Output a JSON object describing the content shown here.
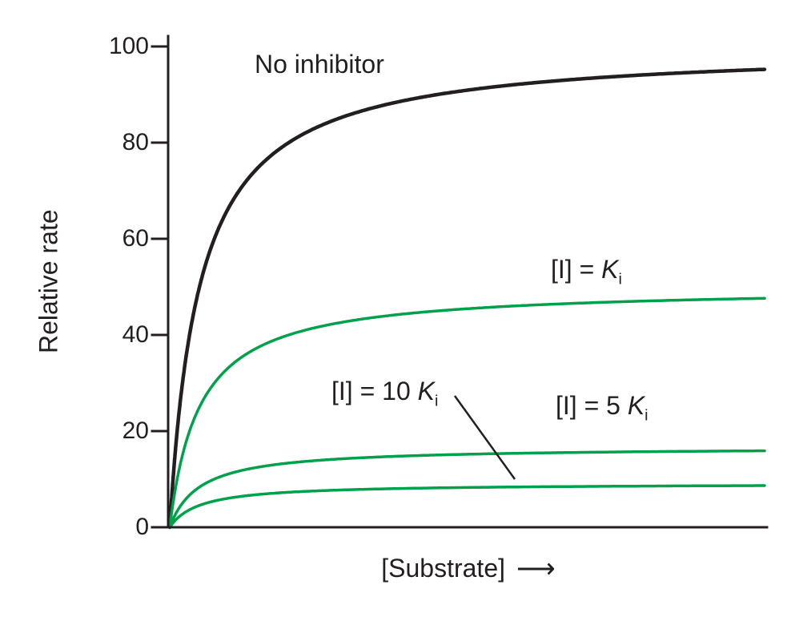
{
  "figure": {
    "background": "#ffffff",
    "ink_color": "#231f20",
    "accent_green": "#00a14b"
  },
  "chart_data": {
    "type": "line",
    "model": "michaelis_menten",
    "title": "",
    "xlabel": "[Substrate]",
    "xlabel_arrow": "⟶",
    "ylabel": "Relative rate",
    "xlim": [
      0,
      10
    ],
    "ylim": [
      0,
      100
    ],
    "yticks": [
      0,
      20,
      40,
      60,
      80,
      100
    ],
    "xticks": [],
    "grid": false,
    "legend": "none",
    "series": [
      {
        "name": "No inhibitor",
        "vmax_apparent": 100,
        "km": 0.5,
        "y_at_right_edge": 95,
        "color": "#231f20",
        "width": 4.5
      },
      {
        "name": "[I] = Ki",
        "vmax_apparent": 50,
        "km": 0.5,
        "y_at_right_edge": 48,
        "color": "#00a14b",
        "width": 3.5
      },
      {
        "name": "[I] = 5 Ki",
        "vmax_apparent": 16.7,
        "km": 0.5,
        "y_at_right_edge": 16,
        "color": "#00a14b",
        "width": 3.5
      },
      {
        "name": "[I] = 10 Ki",
        "vmax_apparent": 9.1,
        "km": 0.5,
        "y_at_right_edge": 9,
        "color": "#00a14b",
        "width": 3.5
      }
    ]
  },
  "annotations": {
    "no_inhibitor": {
      "text": "No inhibitor"
    },
    "ki": {
      "prefix": "[I] = ",
      "symbol": "K",
      "subscript": "i"
    },
    "ki10": {
      "prefix": "[I] = 10 ",
      "symbol": "K",
      "subscript": "i"
    },
    "ki5": {
      "prefix": "[I] = 5 ",
      "symbol": "K",
      "subscript": "i"
    }
  }
}
